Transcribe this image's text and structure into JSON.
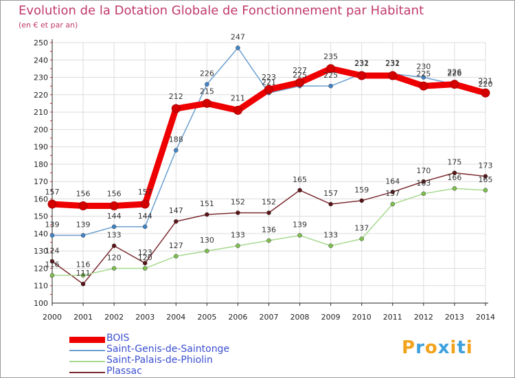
{
  "title": "Evolution de la Dotation Globale de Fonctionnement par Habitant",
  "subtitle": "(en € et par an)",
  "logo": [
    "P",
    "r",
    "o",
    "x",
    "i",
    "t",
    "i"
  ],
  "colors": {
    "title": "#c0396b",
    "grid": "#dcdcdc",
    "axis": "#222222",
    "legend_text": "#3a4fd0",
    "logo": [
      "#f2a21b",
      "#3da0dc",
      "#f2a21b",
      "#3da0dc",
      "#f2a21b",
      "#3da0dc",
      "#f2a21b"
    ]
  },
  "chart_data": {
    "type": "line",
    "title": "Evolution de la Dotation Globale de Fonctionnement par Habitant",
    "subtitle": "(en € et par an)",
    "xlabel": "",
    "ylabel": "",
    "ylim": [
      100,
      250
    ],
    "ytick_step": 10,
    "grid": true,
    "x": [
      "2000",
      "2001",
      "2002",
      "2003",
      "2004",
      "2005",
      "2006",
      "2007",
      "2008",
      "2009",
      "2010",
      "2011",
      "2012",
      "2013",
      "2014"
    ],
    "series": [
      {
        "name": "BOIS",
        "color": "#ee0000",
        "marker": "#d40000",
        "values": [
          157,
          156,
          156,
          157,
          212,
          215,
          211,
          223,
          227,
          235,
          231,
          231,
          225,
          226,
          221
        ],
        "thick": true
      },
      {
        "name": "Saint-Genis-de-Saintonge",
        "color": "#6a9fcf",
        "marker": "#3f84c8",
        "values": [
          139,
          139,
          144,
          144,
          188,
          226,
          247,
          221,
          225,
          225,
          232,
          232,
          230,
          226,
          220
        ],
        "thick": false
      },
      {
        "name": "Saint-Palais-de-Phiolin",
        "color": "#a6d98d",
        "marker": "#7fc04f",
        "values": [
          116,
          116,
          120,
          120,
          127,
          130,
          133,
          136,
          139,
          133,
          137,
          157,
          163,
          166,
          165
        ],
        "thick": false
      },
      {
        "name": "Plassac",
        "color": "#7a2a30",
        "marker": "#5a1418",
        "values": [
          124,
          111,
          133,
          123,
          147,
          151,
          152,
          152,
          165,
          157,
          159,
          164,
          170,
          175,
          173
        ],
        "thick": false
      }
    ]
  }
}
